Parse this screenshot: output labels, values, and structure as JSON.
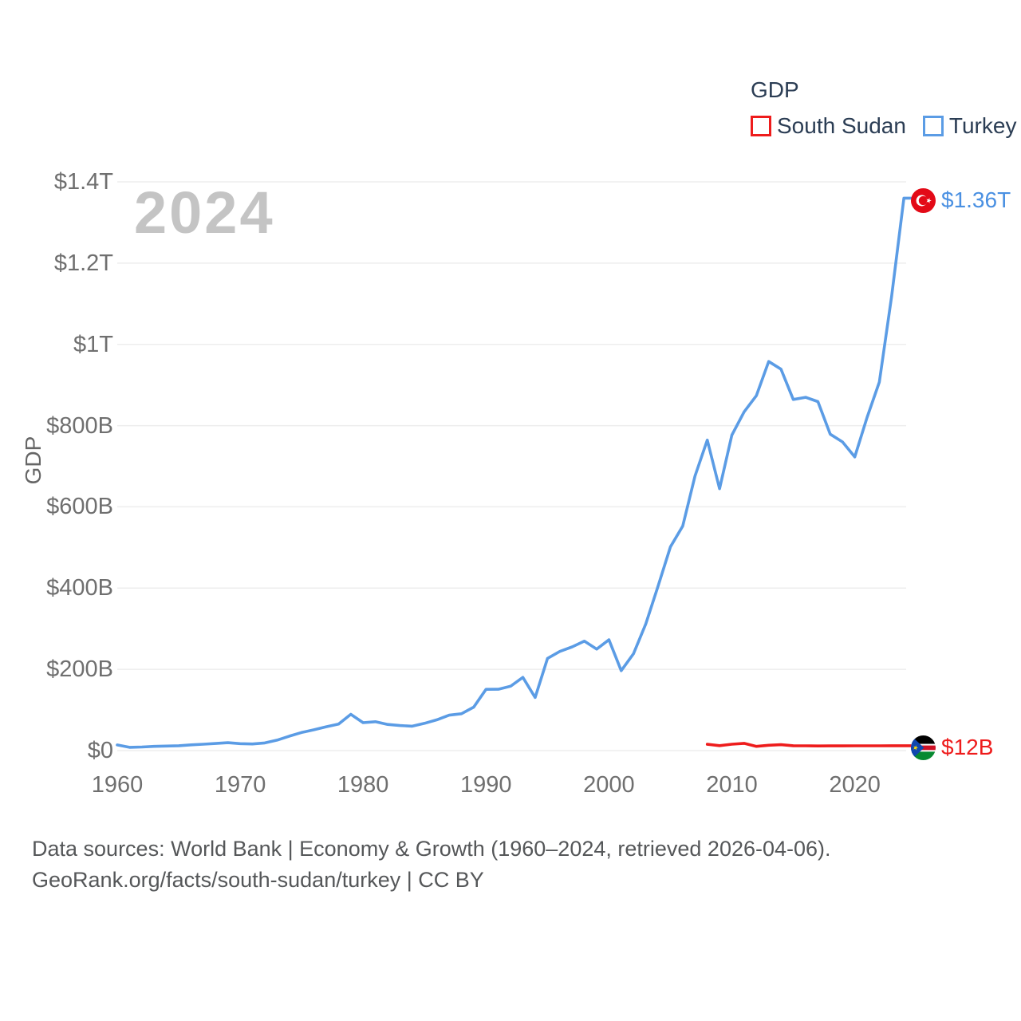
{
  "watermark": "2024",
  "y_axis_title": "GDP",
  "legend": {
    "title": "GDP",
    "items": [
      {
        "label": "South Sudan",
        "color": "#ee1c1c"
      },
      {
        "label": "Turkey",
        "color": "#5b9ce5"
      }
    ]
  },
  "end_labels": [
    {
      "series": "Turkey",
      "text": "$1.36T",
      "color": "#4a90e2",
      "flag": "turkey-flag"
    },
    {
      "series": "South Sudan",
      "text": "$12B",
      "color": "#ee1c1c",
      "flag": "south-sudan-flag"
    }
  ],
  "footer": {
    "line1": "Data sources: World Bank | Economy & Growth (1960–2024, retrieved 2026-04-06).",
    "line2": "GeoRank.org/facts/south-sudan/turkey | CC BY"
  },
  "chart_data": {
    "type": "line",
    "title": "GDP",
    "xlabel": "",
    "ylabel": "GDP",
    "grid": "horizontal",
    "legend_position": "top-right",
    "xlim": [
      1960,
      2024
    ],
    "ylim_billions": [
      0,
      1400
    ],
    "x_ticks": [
      1960,
      1970,
      1980,
      1990,
      2000,
      2010,
      2020
    ],
    "y_ticks": [
      {
        "value": 0,
        "label": "$0"
      },
      {
        "value": 200,
        "label": "$200B"
      },
      {
        "value": 400,
        "label": "$400B"
      },
      {
        "value": 600,
        "label": "$600B"
      },
      {
        "value": 800,
        "label": "$800B"
      },
      {
        "value": 1000,
        "label": "$1T"
      },
      {
        "value": 1200,
        "label": "$1.2T"
      },
      {
        "value": 1400,
        "label": "$1.4T"
      }
    ],
    "series": [
      {
        "name": "South Sudan",
        "color": "#ee1c1c",
        "x_start": 2008,
        "values_billions": [
          15.6,
          12.2,
          15.7,
          17.8,
          10.4,
          13.1,
          14.5,
          12.0,
          11.7,
          11.4,
          11.5,
          11.6,
          11.7,
          11.8,
          11.8,
          11.9,
          12.0
        ]
      },
      {
        "name": "Turkey",
        "color": "#5b9ce5",
        "x_start": 1960,
        "values_billions": [
          14.0,
          8.0,
          8.9,
          10.4,
          11.2,
          11.9,
          14.1,
          15.7,
          17.5,
          19.5,
          17.1,
          16.3,
          18.9,
          25.7,
          35.6,
          44.6,
          51.3,
          58.7,
          65.1,
          89.4,
          68.8,
          71.0,
          64.5,
          61.7,
          60.0,
          67.2,
          75.7,
          87.2,
          90.8,
          107.1,
          150.7,
          151.0,
          158.5,
          180.2,
          130.7,
          227.0,
          244.0,
          255.2,
          269.3,
          249.8,
          272.9,
          196.7,
          238.4,
          311.8,
          404.8,
          501.4,
          552.5,
          675.8,
          764.3,
          644.6,
          776.6,
          834.0,
          874.0,
          957.8,
          938.9,
          864.3,
          869.7,
          859.0,
          779.0,
          759.9,
          723.0,
          819.9,
          907.1,
          1118.3,
          1360.0
        ]
      }
    ],
    "end_values": {
      "Turkey": "$1.36T",
      "South Sudan": "$12B"
    }
  }
}
